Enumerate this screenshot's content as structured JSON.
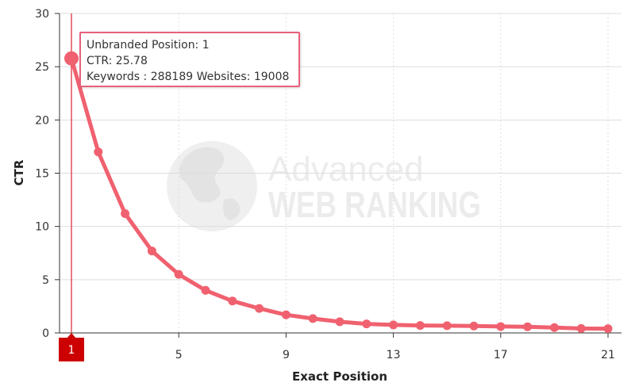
{
  "watermark": {
    "line1": "Advanced",
    "line2": "WEB RANKING"
  },
  "tooltip": {
    "line1": "Unbranded Position: 1",
    "line2": "CTR: 25.78",
    "line3": "Keywords : 288189 Websites: 19008"
  },
  "colors": {
    "series": "#f0616f",
    "crosshair": "#d9232e",
    "marker": "#cc0000",
    "grid": "#dddddd"
  },
  "chart_data": {
    "type": "line",
    "title": "",
    "xlabel": "Exact Position",
    "ylabel": "CTR",
    "xlim": [
      1,
      21
    ],
    "ylim": [
      0,
      30
    ],
    "xticks": [
      1,
      5,
      9,
      13,
      17,
      21
    ],
    "yticks": [
      0,
      5,
      10,
      15,
      20,
      25,
      30
    ],
    "grid": true,
    "highlighted_x": 1,
    "series": [
      {
        "x": [
          1,
          2,
          3,
          4,
          5,
          6,
          7,
          8,
          9,
          10,
          11,
          12,
          13,
          14,
          15,
          16,
          17,
          18,
          19,
          20,
          21
        ],
        "values": [
          25.78,
          17.0,
          11.2,
          7.7,
          5.5,
          4.0,
          3.0,
          2.3,
          1.7,
          1.35,
          1.05,
          0.85,
          0.75,
          0.7,
          0.68,
          0.65,
          0.6,
          0.58,
          0.5,
          0.42,
          0.4
        ]
      }
    ]
  }
}
